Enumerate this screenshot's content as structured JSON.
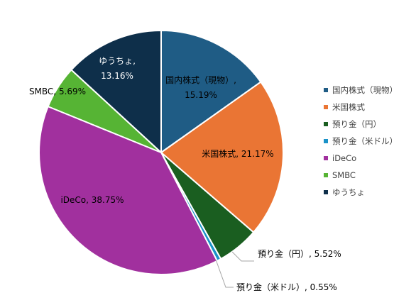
{
  "chart_data": {
    "type": "pie",
    "title": "",
    "legend_position": "right",
    "slices": [
      {
        "legend": "国内株式（現物）",
        "label_name": "国内株式（現物）,",
        "label_value": "15.19%",
        "value": 15.19,
        "color": "#1f5c85"
      },
      {
        "legend": "米国株式",
        "label_name": "米国株式,",
        "label_value": "21.17%",
        "value": 21.17,
        "color": "#ea7534"
      },
      {
        "legend": "預り金（円）",
        "label_name": "預り金（円）,",
        "label_value": "5.52%",
        "value": 5.52,
        "color": "#1a5e20"
      },
      {
        "legend": "預り金（米ドル）",
        "label_name": "預り金（米ドル）,",
        "label_value": "0.55%",
        "value": 0.55,
        "color": "#1a92c8"
      },
      {
        "legend": "iDeCo",
        "label_name": "iDeCo,",
        "label_value": "38.75%",
        "value": 38.75,
        "color": "#a1309e"
      },
      {
        "legend": "SMBC",
        "label_name": "SMBC,",
        "label_value": "5.69%",
        "value": 5.69,
        "color": "#56b434"
      },
      {
        "legend": "ゆうちょ",
        "label_name": "ゆうちょ,",
        "label_value": "13.16%",
        "value": 13.16,
        "color": "#0e2f4a"
      }
    ]
  }
}
